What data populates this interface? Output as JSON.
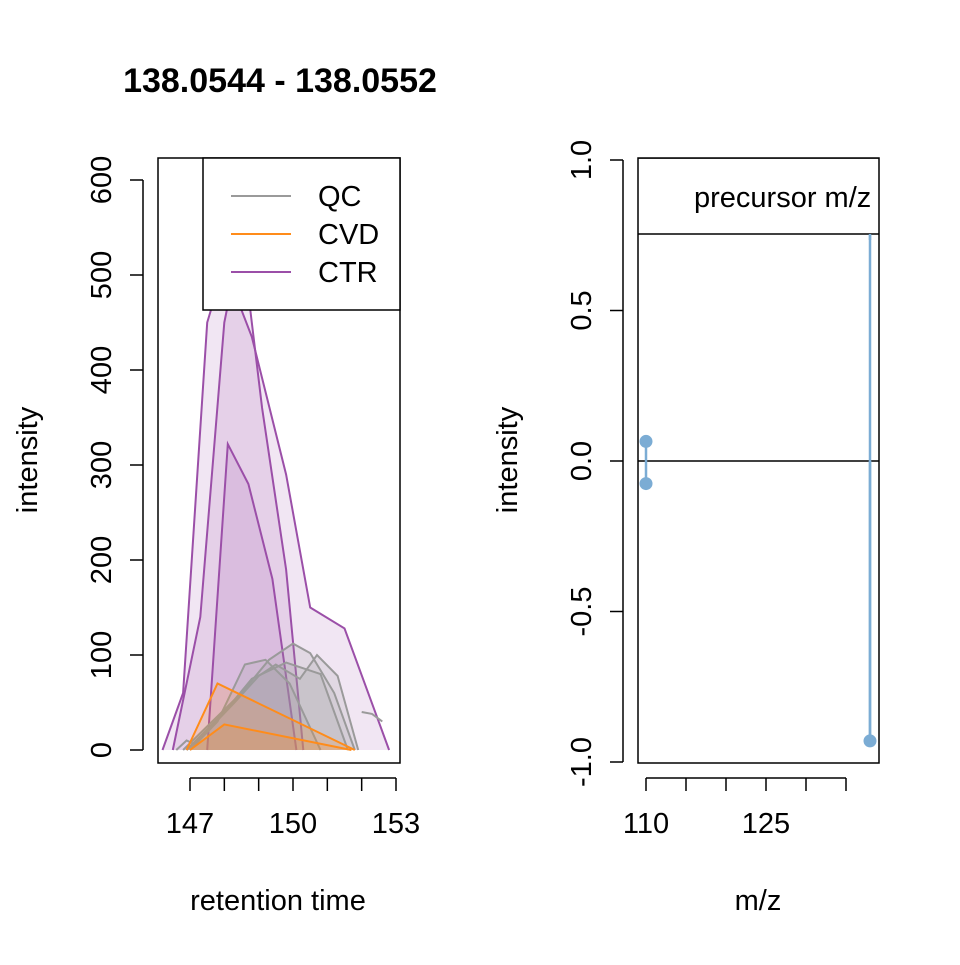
{
  "chart_data": [
    {
      "type": "area",
      "title": "138.0544 - 138.0552",
      "xlabel": "retention time",
      "ylabel": "intensity",
      "xlim": [
        146,
        153
      ],
      "ylim": [
        0,
        630
      ],
      "x_ticks": [
        147,
        150,
        153
      ],
      "y_ticks": [
        0,
        100,
        200,
        300,
        400,
        500,
        600
      ],
      "legend": {
        "position": "top-right",
        "entries": [
          "QC",
          "CVD",
          "CTR"
        ]
      },
      "colors": {
        "QC": "#9a9a9a",
        "CVD": "#ff8c1a",
        "CTR": "#9b4fa8"
      },
      "series": [
        {
          "name": "CTR",
          "group": "CTR",
          "x": [
            146.2,
            146.8,
            147.5,
            148.0,
            148.8,
            149.8,
            150.5,
            151.5,
            152.8
          ],
          "y": [
            0,
            60,
            450,
            510,
            435,
            290,
            150,
            128,
            0
          ]
        },
        {
          "name": "CTR",
          "group": "CTR",
          "x": [
            146.5,
            147.3,
            148.0,
            148.5,
            149.1,
            149.8,
            150.3
          ],
          "y": [
            0,
            140,
            450,
            540,
            360,
            190,
            0
          ]
        },
        {
          "name": "CTR",
          "group": "CTR",
          "x": [
            147.5,
            148.1,
            148.7,
            149.4,
            150.1
          ],
          "y": [
            0,
            322,
            280,
            180,
            0
          ]
        },
        {
          "name": "QC",
          "group": "QC",
          "x": [
            146.9,
            148.0,
            148.8,
            149.8,
            150.8,
            151.6
          ],
          "y": [
            0,
            40,
            75,
            92,
            80,
            0
          ]
        },
        {
          "name": "QC",
          "group": "QC",
          "x": [
            146.8,
            147.5,
            148.5,
            149.3,
            150.0,
            150.5,
            151.2,
            151.8
          ],
          "y": [
            0,
            25,
            60,
            95,
            112,
            102,
            60,
            0
          ]
        },
        {
          "name": "QC",
          "group": "QC",
          "x": [
            147.0,
            147.8,
            148.6,
            149.2,
            149.9,
            150.8
          ],
          "y": [
            0,
            30,
            90,
            95,
            70,
            0
          ]
        },
        {
          "name": "QC",
          "group": "QC",
          "x": [
            146.9,
            147.5,
            148.3,
            149.0,
            149.5,
            150.2,
            150.7,
            151.3,
            151.9
          ],
          "y": [
            0,
            20,
            50,
            78,
            90,
            75,
            100,
            78,
            0
          ]
        },
        {
          "name": "QC",
          "group": "QC",
          "x": [
            146.6,
            146.9,
            147.2
          ],
          "y": [
            0,
            10,
            5
          ]
        },
        {
          "name": "QC",
          "group": "QC",
          "x": [
            152.0,
            152.3,
            152.6
          ],
          "y": [
            40,
            38,
            30
          ]
        },
        {
          "name": "CVD",
          "group": "CVD",
          "x": [
            146.9,
            147.8,
            151.8
          ],
          "y": [
            0,
            70,
            0
          ]
        },
        {
          "name": "CVD",
          "group": "CVD",
          "x": [
            147.0,
            148.0,
            151.7
          ],
          "y": [
            0,
            27,
            0
          ]
        }
      ]
    },
    {
      "type": "scatter",
      "title": "",
      "xlabel": "m/z",
      "ylabel": "intensity",
      "xlim": [
        109,
        139
      ],
      "ylim": [
        -1,
        1
      ],
      "x_ticks": [
        110,
        125
      ],
      "x_minor_ticks": [
        110,
        115,
        120,
        125,
        130,
        135
      ],
      "y_ticks": [
        "-1.0",
        "-0.5",
        "0.0",
        "0.5",
        "1.0"
      ],
      "legend": {
        "position": "top",
        "entries": [
          "precursor m/z"
        ]
      },
      "color": "#7bacd4",
      "points": [
        {
          "x": 110,
          "y": 0.065
        },
        {
          "x": 110,
          "y": -0.075
        },
        {
          "x": 138,
          "y": -0.93
        }
      ],
      "precursor_mz": 138
    }
  ]
}
